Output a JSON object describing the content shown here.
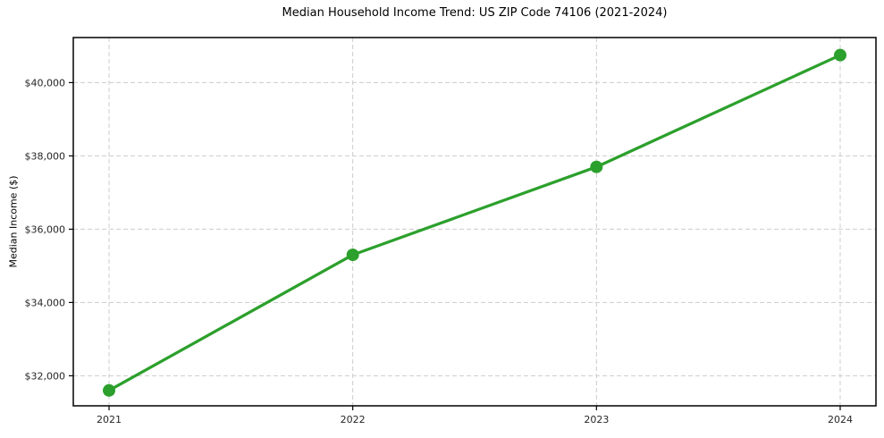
{
  "figure": {
    "background": "#ffffff"
  },
  "chart_data": {
    "type": "line",
    "title": "Median Household Income Trend: US ZIP Code 74106 (2021-2024)",
    "xlabel": "",
    "ylabel": "Median Income ($)",
    "categories": [
      "2021",
      "2022",
      "2023",
      "2024"
    ],
    "values": [
      31600,
      35300,
      37700,
      40750
    ],
    "ylim": [
      31180,
      41230
    ],
    "y_ticks": [
      {
        "value": 32000,
        "label": "$32,000"
      },
      {
        "value": 34000,
        "label": "$34,000"
      },
      {
        "value": 36000,
        "label": "$36,000"
      },
      {
        "value": 38000,
        "label": "$38,000"
      },
      {
        "value": 40000,
        "label": "$40,000"
      }
    ],
    "grid": true,
    "grid_line_style": "dashed",
    "legend_position": "none",
    "marker": "circle",
    "line_color": "#2ca02c",
    "colors": {
      "grid": "#cccccc",
      "axis": "#000000",
      "tick_label": "#262626",
      "title": "#000000",
      "plot_background": "#ffffff"
    }
  }
}
